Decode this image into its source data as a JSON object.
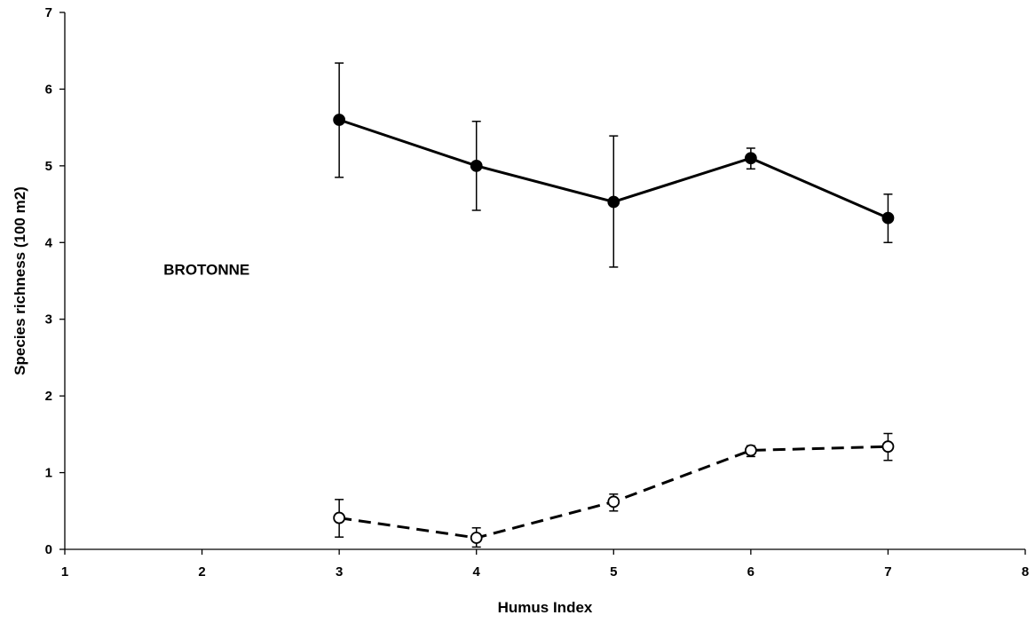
{
  "chart_data": {
    "type": "line",
    "title": "",
    "xlabel": "Humus Index",
    "ylabel": "Species richness (100 m2)",
    "xlim": [
      1,
      8
    ],
    "ylim": [
      0,
      7
    ],
    "x_ticks": [
      "1",
      "2",
      "3",
      "4",
      "5",
      "6",
      "7",
      "8"
    ],
    "y_ticks": [
      "0",
      "1",
      "2",
      "3",
      "4",
      "5",
      "6",
      "7"
    ],
    "grid": false,
    "annotations": [
      {
        "text": "BROTONNE",
        "x": 1.72,
        "y": 3.65
      }
    ],
    "series": [
      {
        "marker": "filled-circle",
        "line": "solid",
        "color": "#000000",
        "x": [
          3,
          4,
          5,
          6,
          7
        ],
        "y": [
          5.6,
          5.0,
          4.53,
          5.1,
          4.32
        ],
        "err_low": [
          4.85,
          4.42,
          3.68,
          4.96,
          4.0
        ],
        "err_high": [
          6.34,
          5.58,
          5.39,
          5.23,
          4.63
        ]
      },
      {
        "marker": "open-circle",
        "line": "dashed",
        "color": "#000000",
        "x": [
          3,
          4,
          5,
          6,
          7
        ],
        "y": [
          0.41,
          0.15,
          0.62,
          1.29,
          1.34
        ],
        "err_low": [
          0.16,
          0.03,
          0.5,
          1.21,
          1.16
        ],
        "err_high": [
          0.65,
          0.28,
          0.72,
          1.35,
          1.51
        ]
      }
    ]
  }
}
